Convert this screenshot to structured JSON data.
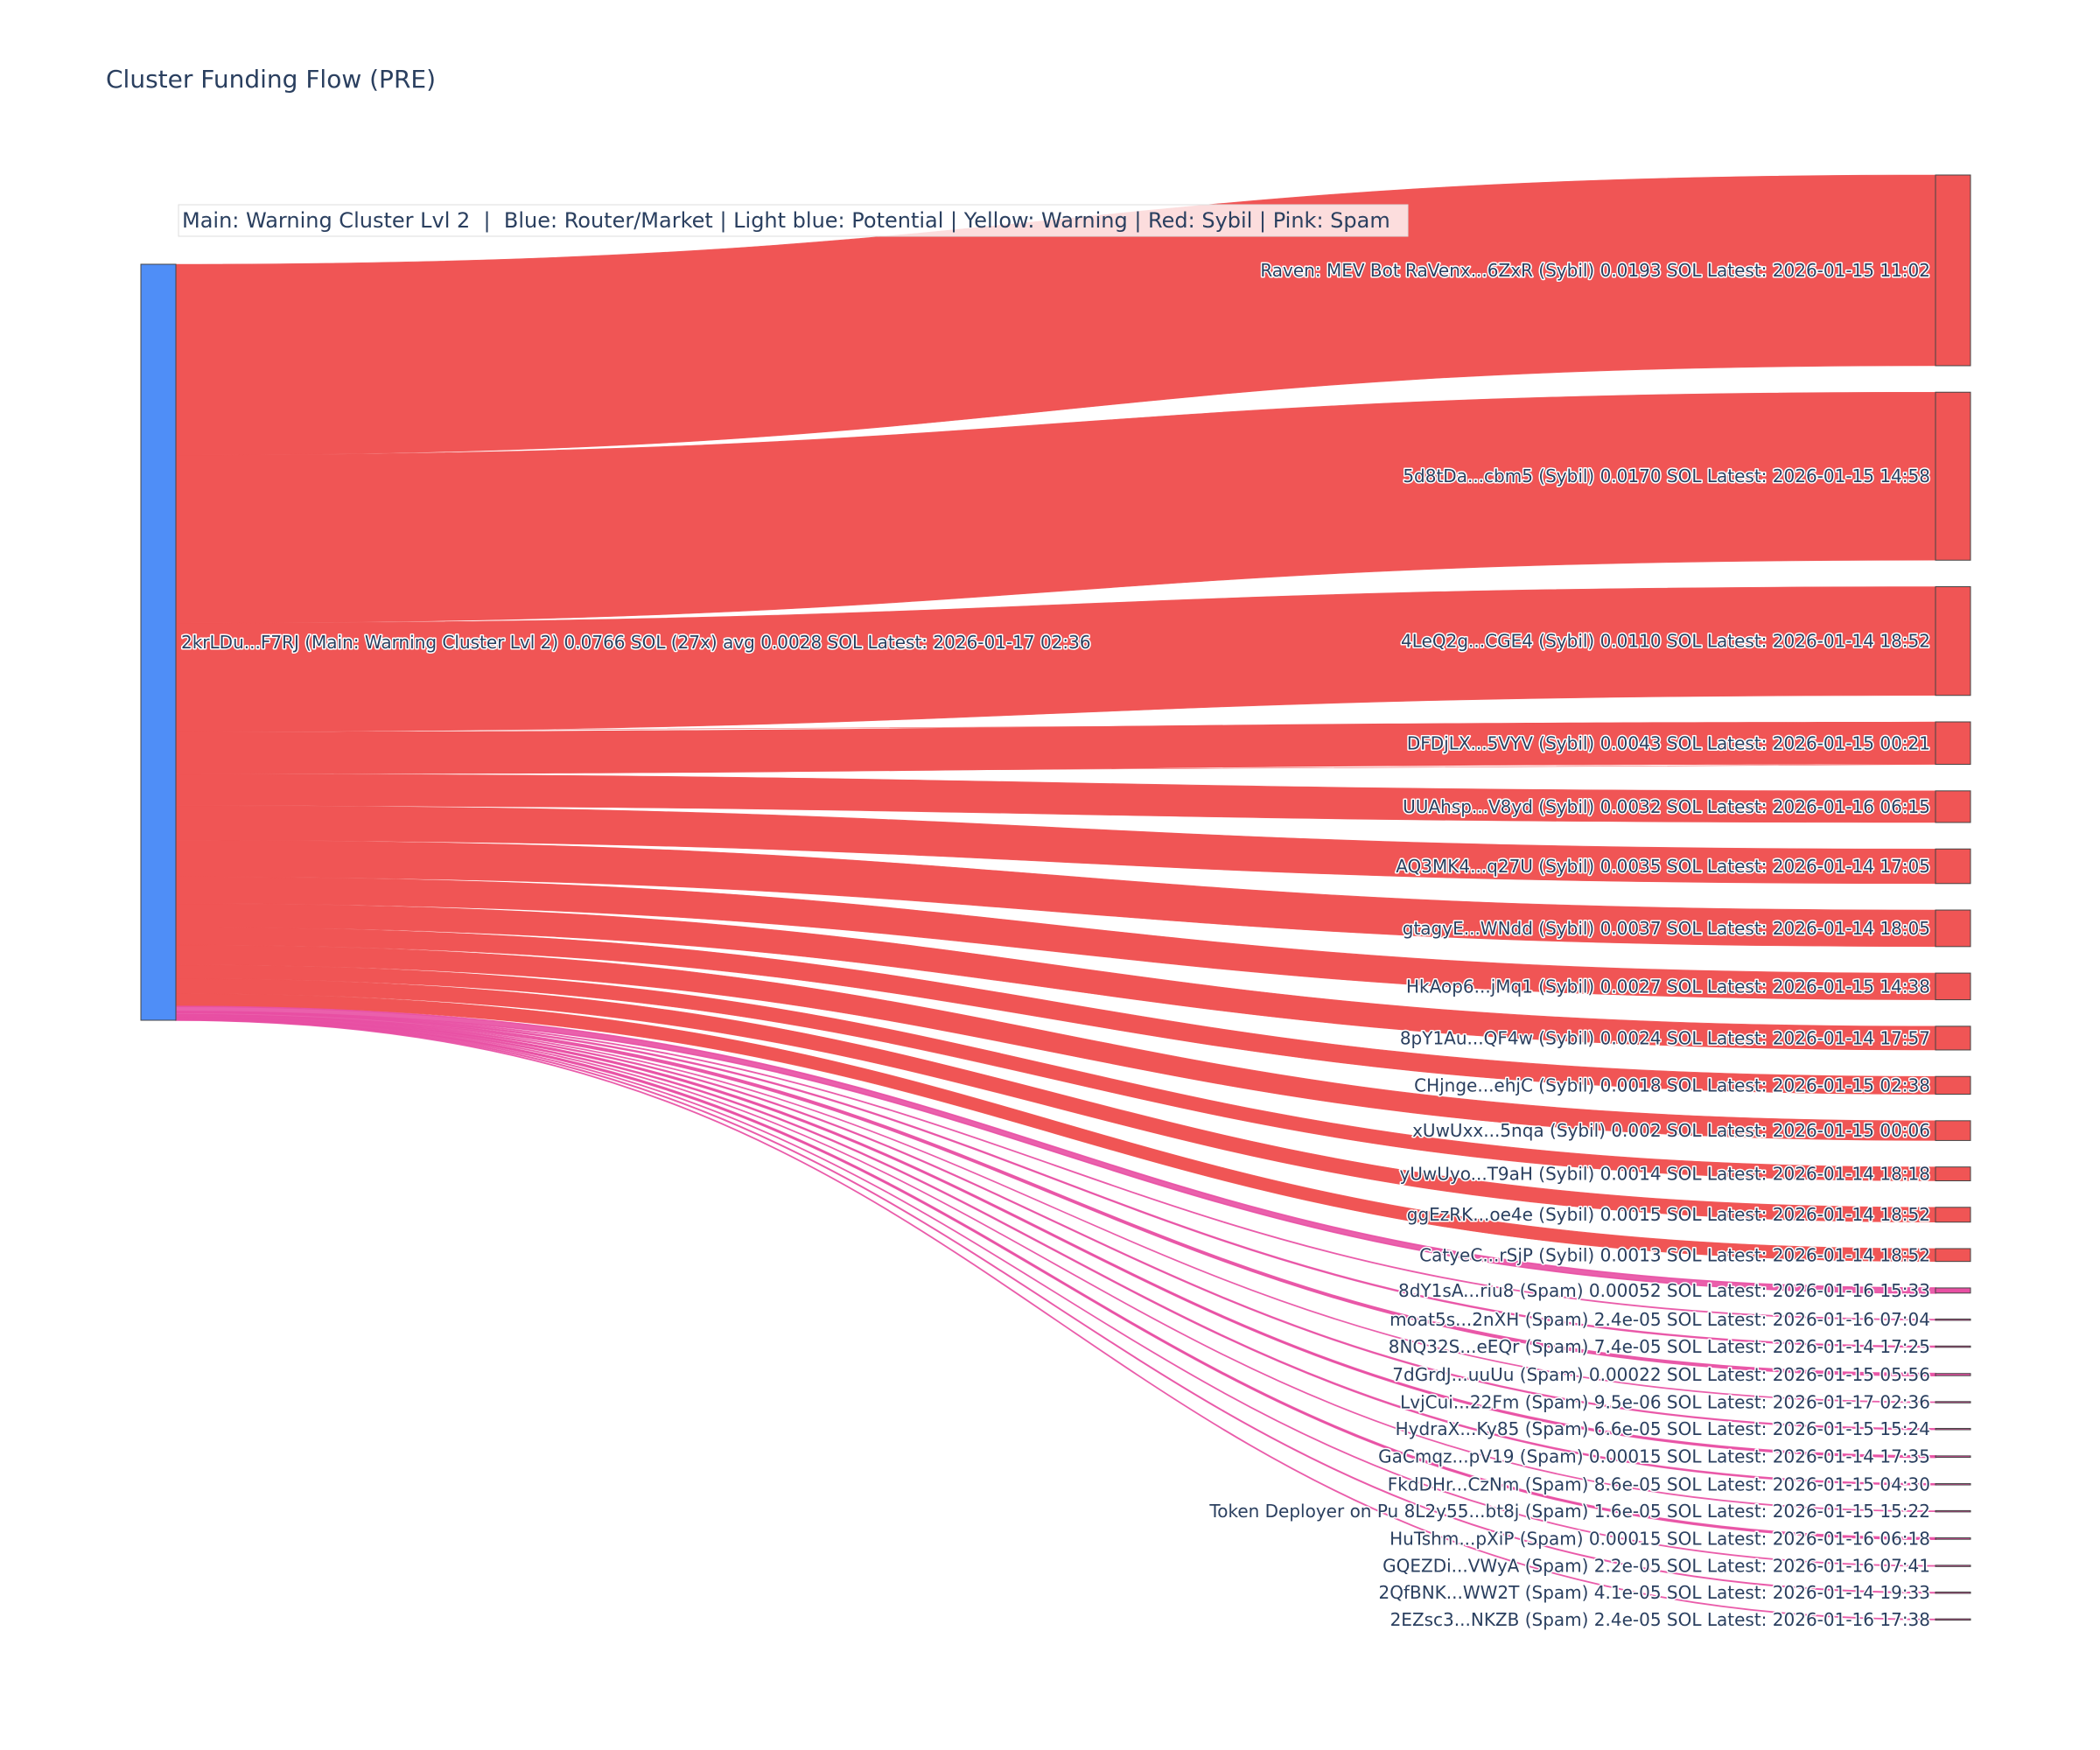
{
  "chart_data": {
    "type": "sankey",
    "title": "Cluster Funding Flow (PRE)",
    "legend_text": "Main: Warning Cluster Lvl 2  |  Blue: Router/Market | Light blue: Potential | Yellow: Warning | Red: Sybil | Pink: Spam",
    "colors": {
      "source_node": "#4f8ef7",
      "sybil": "#f05555",
      "spam": "#e84fa3",
      "node_border": "#444444"
    },
    "source": {
      "label": "2krLDu...F7RJ (Main: Warning Cluster Lvl 2) 0.0766 SOL (27x) avg 0.0028 SOL Latest: 2026-01-17 02:36",
      "total_sol": 0.0766
    },
    "targets": [
      {
        "label": "Raven: MEV Bot RaVenx...6ZxR (Sybil) 0.0193 SOL Latest: 2026-01-15 11:02",
        "category": "sybil",
        "value": 0.0193
      },
      {
        "label": "5d8tDa...cbm5 (Sybil) 0.0170 SOL Latest: 2026-01-15 14:58",
        "category": "sybil",
        "value": 0.017
      },
      {
        "label": "4LeQ2g...CGE4 (Sybil) 0.0110 SOL Latest: 2026-01-14 18:52",
        "category": "sybil",
        "value": 0.011
      },
      {
        "label": "DFDjLX...5VYV (Sybil) 0.0043 SOL Latest: 2026-01-15 00:21",
        "category": "sybil",
        "value": 0.0043
      },
      {
        "label": "UUAhsp...V8yd (Sybil) 0.0032 SOL Latest: 2026-01-16 06:15",
        "category": "sybil",
        "value": 0.0032
      },
      {
        "label": "AQ3MK4...q27U (Sybil) 0.0035 SOL Latest: 2026-01-14 17:05",
        "category": "sybil",
        "value": 0.0035
      },
      {
        "label": "gtagyE...WNdd (Sybil) 0.0037 SOL Latest: 2026-01-14 18:05",
        "category": "sybil",
        "value": 0.0037
      },
      {
        "label": "HkAop6...jMq1 (Sybil) 0.0027 SOL Latest: 2026-01-15 14:38",
        "category": "sybil",
        "value": 0.0027
      },
      {
        "label": "8pY1Au...QF4w (Sybil) 0.0024 SOL Latest: 2026-01-14 17:57",
        "category": "sybil",
        "value": 0.0024
      },
      {
        "label": "CHjnge...ehjC (Sybil) 0.0018 SOL Latest: 2026-01-15 02:38",
        "category": "sybil",
        "value": 0.0018
      },
      {
        "label": "xUwUxx...5nqa (Sybil) 0.002 SOL Latest: 2026-01-15 00:06",
        "category": "sybil",
        "value": 0.002
      },
      {
        "label": "yUwUyo...T9aH (Sybil) 0.0014 SOL Latest: 2026-01-14 18:18",
        "category": "sybil",
        "value": 0.0014
      },
      {
        "label": "ggEzRK...oe4e (Sybil) 0.0015 SOL Latest: 2026-01-14 18:52",
        "category": "sybil",
        "value": 0.0015
      },
      {
        "label": "CatyeC...rSjP (Sybil) 0.0013 SOL Latest: 2026-01-14 18:52",
        "category": "sybil",
        "value": 0.0013
      },
      {
        "label": "8dY1sA...riu8 (Spam) 0.00052 SOL Latest: 2026-01-16 15:33",
        "category": "spam",
        "value": 0.00052
      },
      {
        "label": "moat5s...2nXH (Spam) 2.4e-05 SOL Latest: 2026-01-16 07:04",
        "category": "spam",
        "value": 2.4e-05
      },
      {
        "label": "8NQ32S...eEQr (Spam) 7.4e-05 SOL Latest: 2026-01-14 17:25",
        "category": "spam",
        "value": 7.4e-05
      },
      {
        "label": "7dGrdJ...uuUu (Spam) 0.00022 SOL Latest: 2026-01-15 05:56",
        "category": "spam",
        "value": 0.00022
      },
      {
        "label": "LvjCui...22Fm (Spam) 9.5e-06 SOL Latest: 2026-01-17 02:36",
        "category": "spam",
        "value": 9.5e-06
      },
      {
        "label": "HydraX...Ky85 (Spam) 6.6e-05 SOL Latest: 2026-01-15 15:24",
        "category": "spam",
        "value": 6.6e-05
      },
      {
        "label": "GaCmqz...pV19 (Spam) 0.00015 SOL Latest: 2026-01-14 17:35",
        "category": "spam",
        "value": 0.00015
      },
      {
        "label": "FkdDHr...CzNm (Spam) 8.6e-05 SOL Latest: 2026-01-15 04:30",
        "category": "spam",
        "value": 8.6e-05
      },
      {
        "label": "Token Deployer on Pu 8L2y55...bt8j (Spam) 1.6e-05 SOL Latest: 2026-01-15 15:22",
        "category": "spam",
        "value": 1.6e-05
      },
      {
        "label": "HuTshm...pXiP (Spam) 0.00015 SOL Latest: 2026-01-16 06:18",
        "category": "spam",
        "value": 0.00015
      },
      {
        "label": "GQEZDi...VWyA (Spam) 2.2e-05 SOL Latest: 2026-01-16 07:41",
        "category": "spam",
        "value": 2.2e-05
      },
      {
        "label": "2QfBNK...WW2T (Spam) 4.1e-05 SOL Latest: 2026-01-14 19:33",
        "category": "spam",
        "value": 4.1e-05
      },
      {
        "label": "2EZsc3...NKZB (Spam) 2.4e-05 SOL Latest: 2026-01-16 17:38",
        "category": "spam",
        "value": 2.4e-05
      }
    ]
  }
}
